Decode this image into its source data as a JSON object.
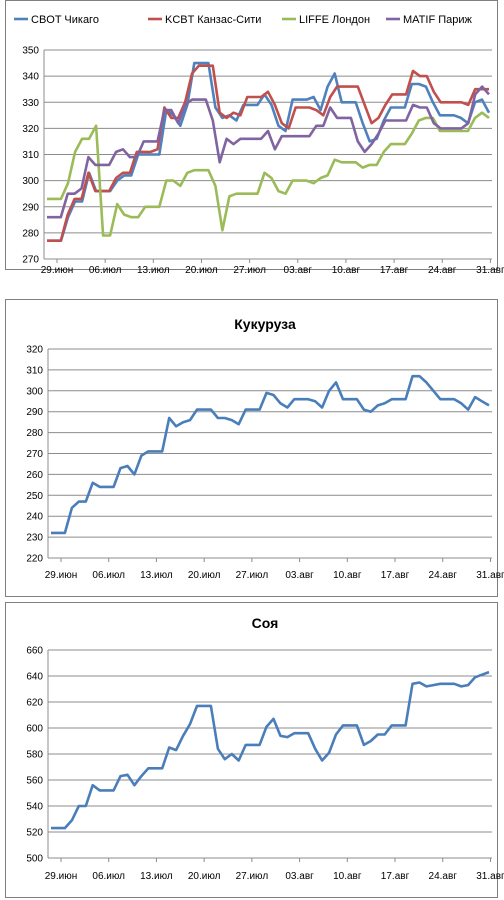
{
  "chart_data": [
    {
      "type": "line",
      "title": "",
      "legend_position": "top",
      "grid": true,
      "x_labels": [
        "29.июн",
        "06.июл",
        "13.июл",
        "20.июл",
        "27.июл",
        "03.авг",
        "10.авг",
        "17.авг",
        "24.авг",
        "31.авг"
      ],
      "ylim": [
        270,
        350
      ],
      "yticks": [
        270,
        280,
        290,
        300,
        310,
        320,
        330,
        340,
        350
      ],
      "series": [
        {
          "name": "CBOT Чикаго",
          "color": "#4f81bd",
          "values": [
            277,
            277,
            277,
            286,
            292,
            292,
            303,
            296,
            296,
            296,
            300,
            302,
            302,
            310,
            310,
            310,
            310,
            327,
            325,
            321,
            329,
            345,
            345,
            345,
            328,
            324,
            325,
            323,
            329,
            329,
            329,
            333,
            329,
            321,
            319,
            331,
            331,
            331,
            332,
            327,
            336,
            341,
            330,
            330,
            330,
            322,
            315,
            316,
            323,
            328,
            328,
            328,
            337,
            337,
            336,
            330,
            325,
            325,
            325,
            324,
            322,
            330,
            331,
            326
          ]
        },
        {
          "name": "KCBT Канзас-Сити",
          "color": "#c0504d",
          "values": [
            277,
            277,
            277,
            287,
            293,
            293,
            303,
            296,
            296,
            296,
            301,
            303,
            303,
            311,
            311,
            311,
            312,
            328,
            324,
            324,
            330,
            341,
            344,
            344,
            344,
            326,
            324,
            326,
            325,
            332,
            332,
            332,
            334,
            329,
            322,
            320,
            328,
            328,
            328,
            327,
            325,
            332,
            336,
            336,
            336,
            336,
            329,
            322,
            324,
            329,
            333,
            333,
            333,
            342,
            340,
            340,
            334,
            330,
            330,
            330,
            330,
            329,
            335,
            335,
            335
          ]
        },
        {
          "name": "LIFFE Лондон",
          "color": "#9bbb59",
          "values": [
            293,
            293,
            293,
            299,
            311,
            316,
            316,
            321,
            279,
            279,
            291,
            287,
            286,
            286,
            290,
            290,
            290,
            300,
            300,
            298,
            303,
            304,
            304,
            304,
            298,
            281,
            294,
            295,
            295,
            295,
            295,
            303,
            301,
            296,
            295,
            300,
            300,
            300,
            299,
            301,
            302,
            308,
            307,
            307,
            307,
            305,
            306,
            306,
            311,
            314,
            314,
            314,
            318,
            323,
            324,
            324,
            319,
            319,
            319,
            319,
            319,
            324,
            326,
            324
          ]
        },
        {
          "name": "MATIF Париж",
          "color": "#8064a2",
          "values": [
            286,
            286,
            286,
            295,
            295,
            297,
            309,
            306,
            306,
            306,
            311,
            312,
            309,
            309,
            315,
            315,
            315,
            327,
            327,
            322,
            329,
            331,
            331,
            331,
            323,
            307,
            316,
            314,
            316,
            316,
            316,
            316,
            319,
            312,
            317,
            317,
            317,
            317,
            317,
            321,
            321,
            328,
            324,
            324,
            324,
            315,
            311,
            314,
            318,
            323,
            323,
            323,
            323,
            329,
            328,
            328,
            322,
            320,
            320,
            320,
            320,
            322,
            333,
            336,
            333
          ]
        }
      ]
    },
    {
      "type": "line",
      "title": "Кукуруза",
      "grid": true,
      "x_labels": [
        "29.июн",
        "06.июл",
        "13.июл",
        "20.июл",
        "27.июл",
        "03.авг",
        "10.авг",
        "17.авг",
        "24.авг",
        "31.авг"
      ],
      "ylim": [
        220,
        320
      ],
      "yticks": [
        220,
        230,
        240,
        250,
        260,
        270,
        280,
        290,
        300,
        310,
        320
      ],
      "series": [
        {
          "name": "",
          "color": "#4a7ebb",
          "values": [
            232,
            232,
            232,
            244,
            247,
            247,
            256,
            254,
            254,
            254,
            263,
            264,
            260,
            269,
            271,
            271,
            271,
            287,
            283,
            285,
            286,
            291,
            291,
            291,
            287,
            287,
            286,
            284,
            291,
            291,
            291,
            299,
            298,
            294,
            292,
            296,
            296,
            296,
            295,
            292,
            300,
            304,
            296,
            296,
            296,
            291,
            290,
            293,
            294,
            296,
            296,
            296,
            307,
            307,
            304,
            300,
            296,
            296,
            296,
            294,
            291,
            297,
            295,
            293
          ]
        }
      ]
    },
    {
      "type": "line",
      "title": "Соя",
      "grid": true,
      "x_labels": [
        "29.июн",
        "06.июл",
        "13.июл",
        "20.июл",
        "27.июл",
        "03.авг",
        "10.авг",
        "17.авг",
        "24.авг",
        "31.авг"
      ],
      "ylim": [
        500,
        660
      ],
      "yticks": [
        500,
        520,
        540,
        560,
        580,
        600,
        620,
        640,
        660
      ],
      "series": [
        {
          "name": "",
          "color": "#4a7ebb",
          "values": [
            523,
            523,
            523,
            529,
            540,
            540,
            556,
            552,
            552,
            552,
            563,
            564,
            556,
            563,
            569,
            569,
            569,
            585,
            583,
            594,
            603,
            617,
            617,
            617,
            584,
            576,
            580,
            575,
            587,
            587,
            587,
            601,
            607,
            594,
            593,
            596,
            596,
            596,
            584,
            575,
            581,
            595,
            602,
            602,
            602,
            587,
            590,
            595,
            595,
            602,
            602,
            602,
            634,
            635,
            632,
            633,
            634,
            634,
            634,
            632,
            633,
            639,
            641,
            643
          ]
        }
      ]
    }
  ]
}
